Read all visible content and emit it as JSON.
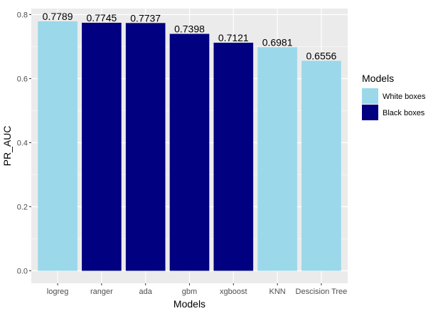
{
  "chart_data": {
    "type": "bar",
    "title": "",
    "xlabel": "Models",
    "ylabel": "PR_AUC",
    "ylim": [
      0,
      0.8
    ],
    "yticks": [
      "0.0",
      "0.2",
      "0.4",
      "0.6",
      "0.8"
    ],
    "grid": true,
    "legend_placement": "right",
    "categories": [
      "logreg",
      "ranger",
      "ada",
      "gbm",
      "xgboost",
      "KNN",
      "Descision Tree"
    ],
    "values": [
      0.7789,
      0.7745,
      0.7737,
      0.7398,
      0.7121,
      0.6981,
      0.6556
    ],
    "value_labels": [
      "0.7789",
      "0.7745",
      "0.7737",
      "0.7398",
      "0.7121",
      "0.6981",
      "0.6556"
    ],
    "groups": [
      "White boxes",
      "Black boxes",
      "Black boxes",
      "Black boxes",
      "Black boxes",
      "White boxes",
      "White boxes"
    ],
    "legend": {
      "title": "Models",
      "entries": [
        {
          "label": "White boxes",
          "color": "#9ad8ea"
        },
        {
          "label": "Black boxes",
          "color": "#000080"
        }
      ]
    },
    "colors": {
      "panel_background": "#ebebeb",
      "grid": "#ffffff"
    }
  }
}
